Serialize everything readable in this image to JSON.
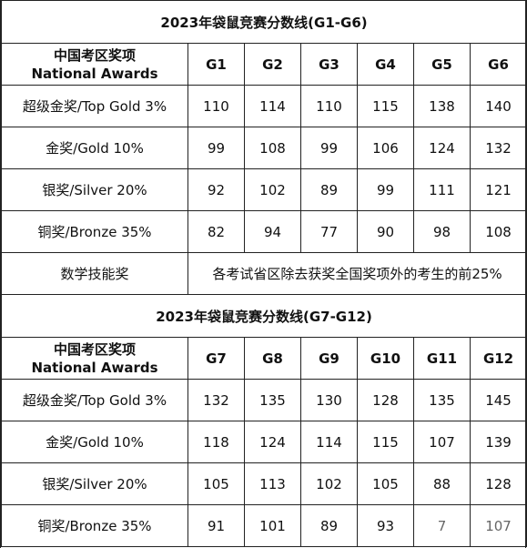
{
  "tables": [
    {
      "title": "2023年袋鼠竞赛分数线(G1-G6)",
      "awards_header_cn": "中国考区奖项",
      "awards_header_en": "National Awards",
      "columns": [
        "G1",
        "G2",
        "G3",
        "G4",
        "G5",
        "G6"
      ],
      "rows": [
        {
          "label": "超级金奖/Top Gold 3%",
          "values": [
            "110",
            "114",
            "110",
            "115",
            "138",
            "140"
          ]
        },
        {
          "label": "金奖/Gold 10%",
          "values": [
            "99",
            "108",
            "99",
            "106",
            "124",
            "132"
          ]
        },
        {
          "label": "银奖/Silver 20%",
          "values": [
            "92",
            "102",
            "89",
            "99",
            "111",
            "121"
          ]
        },
        {
          "label": "铜奖/Bronze 35%",
          "values": [
            "82",
            "94",
            "77",
            "90",
            "98",
            "108"
          ]
        }
      ],
      "note_label": "数学技能奖",
      "note_text": "各考试省区除去获奖全国奖项外的考生的前25%"
    },
    {
      "title": "2023年袋鼠竞赛分数线(G7-G12)",
      "awards_header_cn": "中国考区奖项",
      "awards_header_en": "National Awards",
      "columns": [
        "G7",
        "G8",
        "G9",
        "G10",
        "G11",
        "G12"
      ],
      "rows": [
        {
          "label": "超级金奖/Top Gold 3%",
          "values": [
            "132",
            "135",
            "130",
            "128",
            "135",
            "145"
          ]
        },
        {
          "label": "金奖/Gold 10%",
          "values": [
            "118",
            "124",
            "114",
            "115",
            "107",
            "139"
          ]
        },
        {
          "label": "银奖/Silver 20%",
          "values": [
            "105",
            "113",
            "102",
            "105",
            "88",
            "128"
          ]
        },
        {
          "label": "铜奖/Bronze 35%",
          "values": [
            "91",
            "101",
            "89",
            "93",
            "7​",
            "107"
          ]
        }
      ]
    }
  ]
}
